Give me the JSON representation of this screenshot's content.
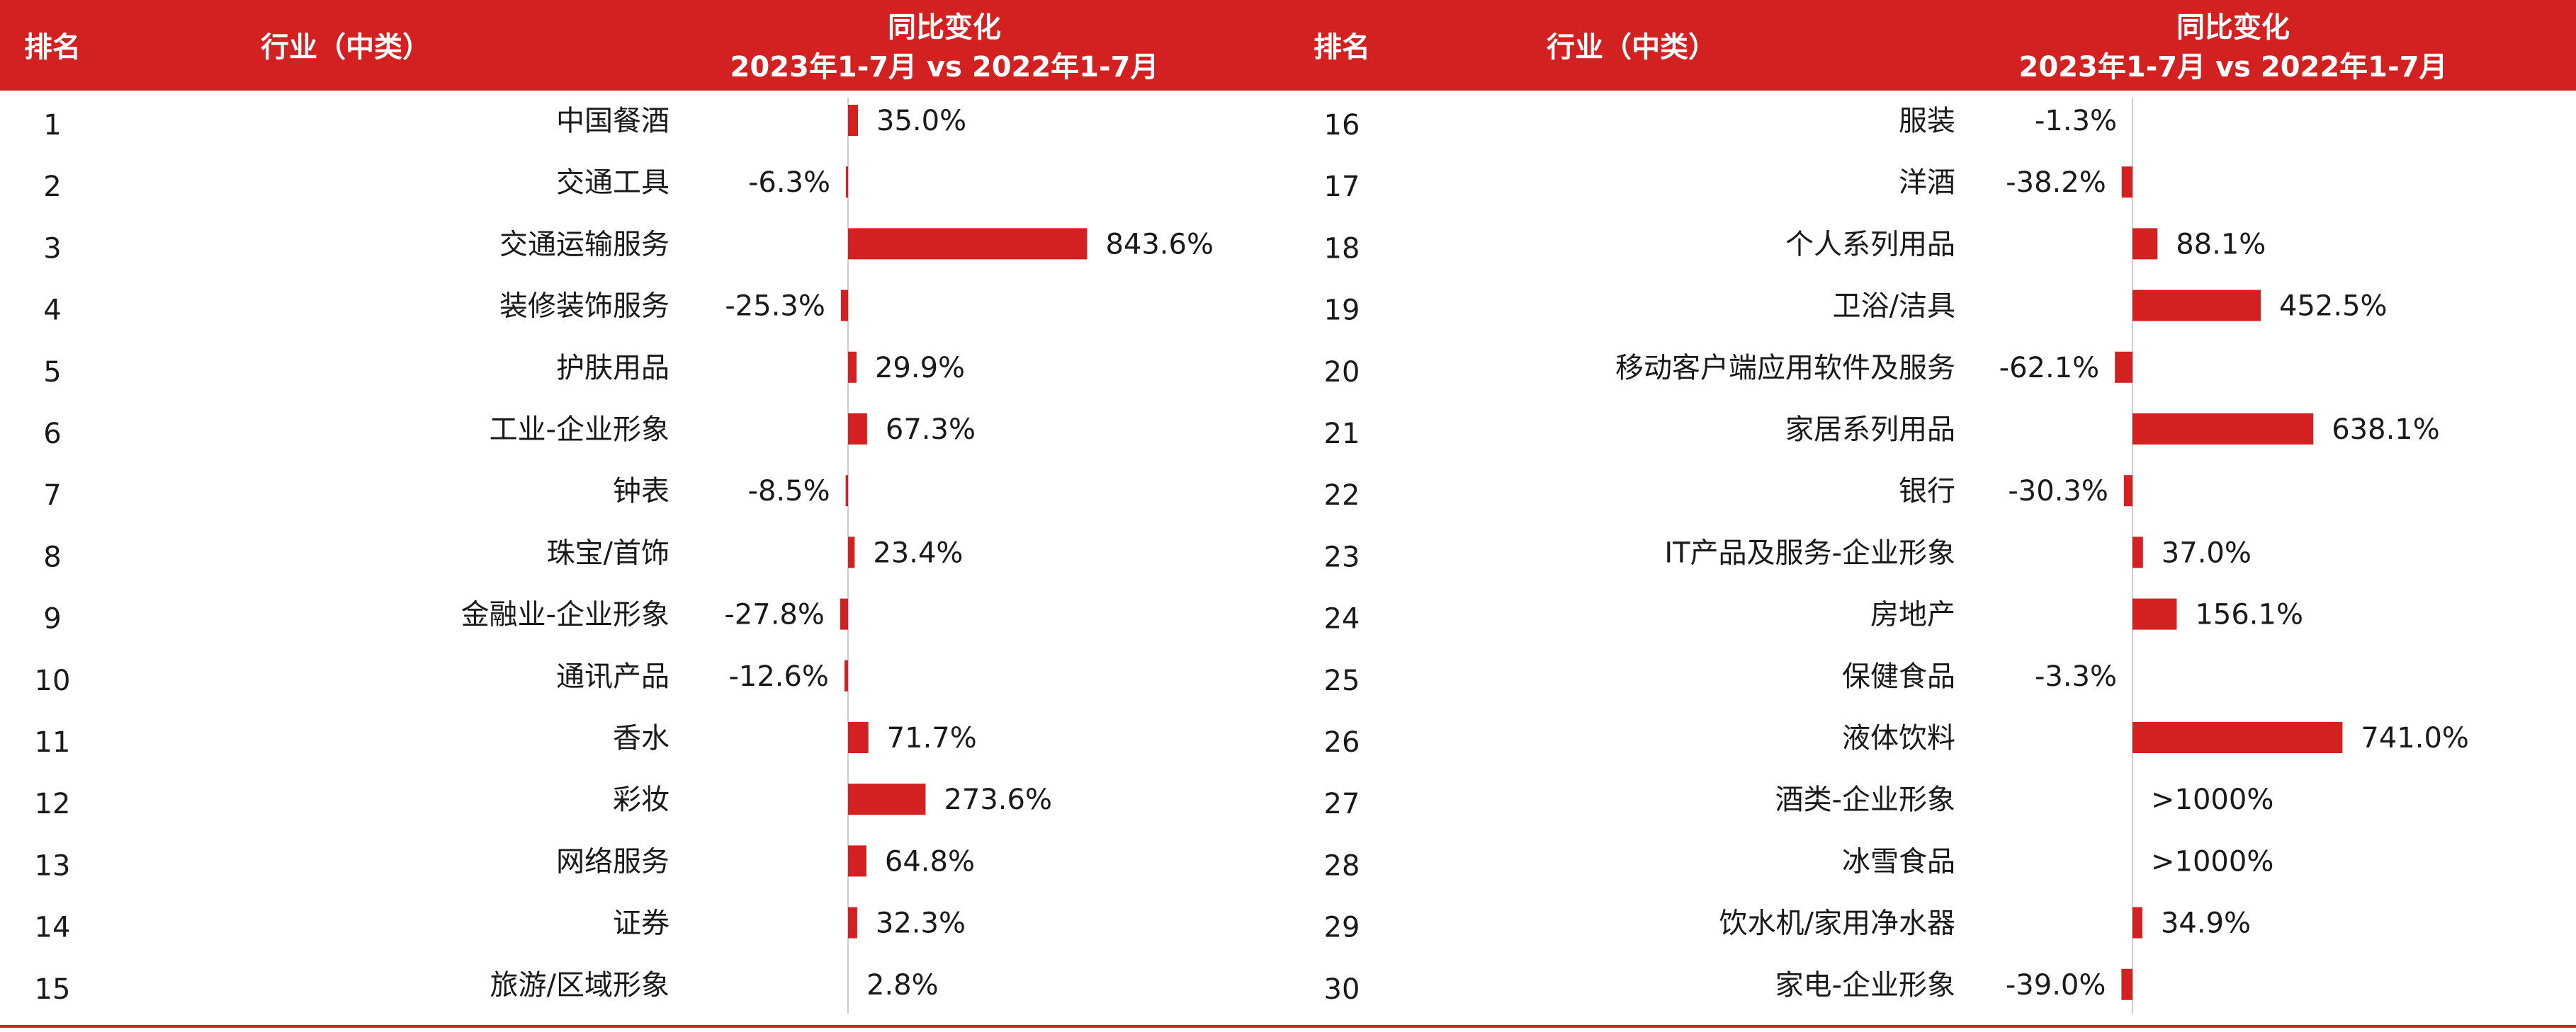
{
  "header": {
    "rank": "排名",
    "industry": "行业（中类）",
    "change_line1": "同比变化",
    "change_line2": "2023年1-7月 vs 2022年1-7月"
  },
  "colors": {
    "accent": "#D32020",
    "header_text": "#FFFFFF",
    "body_text": "#1A1A1A",
    "axis": "#CCCCCC"
  },
  "chart_data": [
    {
      "type": "bar",
      "orientation": "horizontal",
      "columns": [
        "排名",
        "行业（中类）",
        "同比变化 2023年1-7月 vs 2022年1-7月"
      ],
      "rows": [
        {
          "rank": "1",
          "industry": "中国餐酒",
          "value": 35.0,
          "label": "35.0%"
        },
        {
          "rank": "2",
          "industry": "交通工具",
          "value": -6.3,
          "label": "-6.3%"
        },
        {
          "rank": "3",
          "industry": "交通运输服务",
          "value": 843.6,
          "label": "843.6%"
        },
        {
          "rank": "4",
          "industry": "装修装饰服务",
          "value": -25.3,
          "label": "-25.3%"
        },
        {
          "rank": "5",
          "industry": "护肤用品",
          "value": 29.9,
          "label": "29.9%"
        },
        {
          "rank": "6",
          "industry": "工业-企业形象",
          "value": 67.3,
          "label": "67.3%"
        },
        {
          "rank": "7",
          "industry": "钟表",
          "value": -8.5,
          "label": "-8.5%"
        },
        {
          "rank": "8",
          "industry": "珠宝/首饰",
          "value": 23.4,
          "label": "23.4%"
        },
        {
          "rank": "9",
          "industry": "金融业-企业形象",
          "value": -27.8,
          "label": "-27.8%"
        },
        {
          "rank": "10",
          "industry": "通讯产品",
          "value": -12.6,
          "label": "-12.6%"
        },
        {
          "rank": "11",
          "industry": "香水",
          "value": 71.7,
          "label": "71.7%"
        },
        {
          "rank": "12",
          "industry": "彩妆",
          "value": 273.6,
          "label": "273.6%"
        },
        {
          "rank": "13",
          "industry": "网络服务",
          "value": 64.8,
          "label": "64.8%"
        },
        {
          "rank": "14",
          "industry": "证券",
          "value": 32.3,
          "label": "32.3%"
        },
        {
          "rank": "15",
          "industry": "旅游/区域形象",
          "value": 2.8,
          "label": "2.8%"
        }
      ]
    },
    {
      "type": "bar",
      "orientation": "horizontal",
      "columns": [
        "排名",
        "行业（中类）",
        "同比变化 2023年1-7月 vs 2022年1-7月"
      ],
      "rows": [
        {
          "rank": "16",
          "industry": "服装",
          "value": -1.3,
          "label": "-1.3%"
        },
        {
          "rank": "17",
          "industry": "洋酒",
          "value": -38.2,
          "label": "-38.2%"
        },
        {
          "rank": "18",
          "industry": "个人系列用品",
          "value": 88.1,
          "label": "88.1%"
        },
        {
          "rank": "19",
          "industry": "卫浴/洁具",
          "value": 452.5,
          "label": "452.5%"
        },
        {
          "rank": "20",
          "industry": "移动客户端应用软件及服务",
          "value": -62.1,
          "label": "-62.1%"
        },
        {
          "rank": "21",
          "industry": "家居系列用品",
          "value": 638.1,
          "label": "638.1%"
        },
        {
          "rank": "22",
          "industry": "银行",
          "value": -30.3,
          "label": "-30.3%"
        },
        {
          "rank": "23",
          "industry": "IT产品及服务-企业形象",
          "value": 37.0,
          "label": "37.0%"
        },
        {
          "rank": "24",
          "industry": "房地产",
          "value": 156.1,
          "label": "156.1%"
        },
        {
          "rank": "25",
          "industry": "保健食品",
          "value": -3.3,
          "label": "-3.3%"
        },
        {
          "rank": "26",
          "industry": "液体饮料",
          "value": 741.0,
          "label": "741.0%"
        },
        {
          "rank": "27",
          "industry": "酒类-企业形象",
          "value": null,
          "label": ">1000%"
        },
        {
          "rank": "28",
          "industry": "冰雪食品",
          "value": null,
          "label": ">1000%"
        },
        {
          "rank": "29",
          "industry": "饮水机/家用净水器",
          "value": 34.9,
          "label": "34.9%"
        },
        {
          "rank": "30",
          "industry": "家电-企业形象",
          "value": -39.0,
          "label": "-39.0%"
        }
      ]
    }
  ]
}
